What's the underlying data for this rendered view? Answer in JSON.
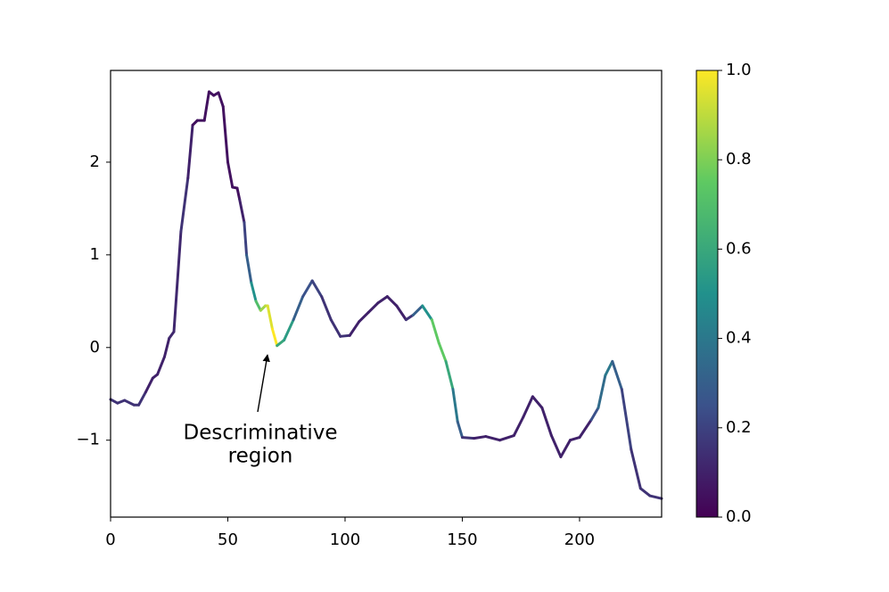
{
  "chart_data": {
    "type": "colored-line",
    "x": [
      0,
      3,
      6,
      10,
      12,
      15,
      18,
      20,
      23,
      25,
      27,
      30,
      33,
      35,
      37,
      40,
      42,
      44,
      46,
      48,
      50,
      52,
      54,
      55,
      57,
      58,
      60,
      62,
      64,
      66,
      67,
      69,
      71,
      74,
      78,
      82,
      86,
      90,
      94,
      98,
      102,
      106,
      110,
      114,
      118,
      122,
      126,
      129,
      133,
      137,
      140,
      143,
      146,
      148,
      150,
      155,
      160,
      166,
      172,
      176,
      180,
      184,
      188,
      192,
      196,
      200,
      205,
      208,
      211,
      214,
      218,
      222,
      226,
      230,
      235
    ],
    "series": [
      {
        "values": [
          -0.56,
          -0.6,
          -0.57,
          -0.62,
          -0.62,
          -0.48,
          -0.33,
          -0.29,
          -0.1,
          0.1,
          0.17,
          1.25,
          1.83,
          2.4,
          2.45,
          2.45,
          2.76,
          2.72,
          2.75,
          2.6,
          2.0,
          1.73,
          1.72,
          1.6,
          1.35,
          1.0,
          0.7,
          0.5,
          0.4,
          0.45,
          0.45,
          0.2,
          0.02,
          0.08,
          0.3,
          0.55,
          0.72,
          0.55,
          0.3,
          0.12,
          0.13,
          0.28,
          0.38,
          0.48,
          0.55,
          0.45,
          0.3,
          0.35,
          0.45,
          0.3,
          0.05,
          -0.15,
          -0.45,
          -0.8,
          -0.97,
          -0.98,
          -0.96,
          -1.0,
          -0.95,
          -0.75,
          -0.53,
          -0.65,
          -0.95,
          -1.18,
          -1.0,
          -0.97,
          -0.78,
          -0.65,
          -0.3,
          -0.15,
          -0.45,
          -1.1,
          -1.52,
          -1.6,
          -1.63
        ],
        "color_values": [
          0.15,
          0.15,
          0.15,
          0.15,
          0.15,
          0.1,
          0.1,
          0.1,
          0.1,
          0.12,
          0.12,
          0.15,
          0.1,
          0.05,
          0.05,
          0.05,
          0.05,
          0.05,
          0.05,
          0.05,
          0.05,
          0.05,
          0.05,
          0.1,
          0.2,
          0.3,
          0.5,
          0.7,
          0.85,
          0.9,
          0.95,
          1.0,
          0.6,
          0.55,
          0.3,
          0.25,
          0.2,
          0.15,
          0.15,
          0.15,
          0.1,
          0.1,
          0.1,
          0.1,
          0.1,
          0.1,
          0.15,
          0.3,
          0.5,
          0.75,
          0.75,
          0.6,
          0.4,
          0.3,
          0.15,
          0.1,
          0.1,
          0.1,
          0.1,
          0.1,
          0.1,
          0.1,
          0.1,
          0.1,
          0.1,
          0.1,
          0.25,
          0.35,
          0.4,
          0.3,
          0.2,
          0.15,
          0.15,
          0.15,
          0.15
        ]
      }
    ],
    "xlim": [
      0,
      235
    ],
    "ylim": [
      -1.83,
      2.99
    ],
    "xticks": [
      0,
      50,
      100,
      150,
      200
    ],
    "yticks": [
      {
        "value": -1,
        "label": "−1"
      },
      0,
      1,
      2
    ],
    "colormap": [
      "#440154",
      "#3b528b",
      "#21918c",
      "#5ec962",
      "#fde725"
    ],
    "clim": [
      0,
      1
    ],
    "colorbar_ticks": [
      {
        "value": 0,
        "label": "0.0"
      },
      0.2,
      0.4,
      0.6,
      0.8,
      {
        "value": 1,
        "label": "1.0"
      }
    ],
    "annotation": [
      "Descriminative",
      "region"
    ]
  }
}
